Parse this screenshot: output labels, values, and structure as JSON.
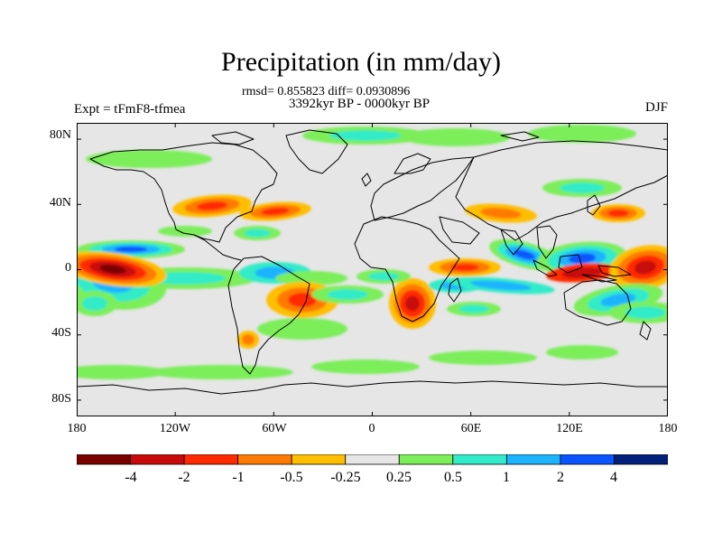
{
  "title": "Precipitation (in mm/day)",
  "stats_line": "rmsd= 0.855823  diff= 0.0930896",
  "period_line": "3392kyr BP - 0000kyr BP",
  "expt_label": "Expt = tFmF8-tfmea",
  "season_label": "DJF",
  "map_data": {
    "type": "filled-contour-map",
    "projection": "cylindrical-equidistant",
    "lon_range": [
      -180,
      180
    ],
    "lat_range": [
      -90,
      90
    ],
    "lat_ticks": [
      "80N",
      "40N",
      "0",
      "40S",
      "80S"
    ],
    "lon_ticks": [
      "180",
      "120W",
      "60W",
      "0",
      "60E",
      "120E",
      "180"
    ],
    "levels": [
      "-4",
      "-2",
      "-1",
      "-0.5",
      "-0.25",
      "0.25",
      "0.5",
      "1",
      "2",
      "4"
    ],
    "colors": [
      "#7a0000",
      "#c80a0a",
      "#ff2a00",
      "#ff7a00",
      "#ffbe00",
      "#e6e6e6",
      "#7cee5a",
      "#33ebc8",
      "#1cb4ff",
      "#0a55ff",
      "#00207a"
    ],
    "background_color": "#e6e6e6"
  }
}
